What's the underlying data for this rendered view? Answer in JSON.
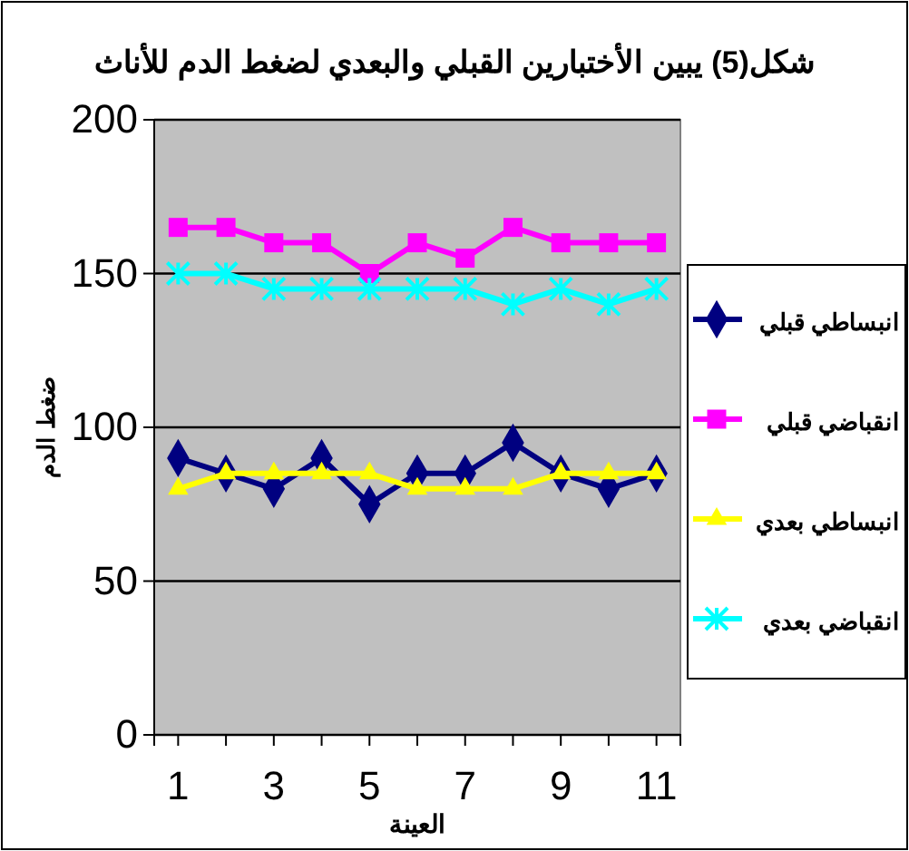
{
  "chart_data": {
    "type": "line",
    "title": "شكل(5)   يبين الأختبارين القبلي والبعدي لضغط الدم للأناث",
    "xlabel": "العينة",
    "ylabel": "ضغط الدم",
    "categories": [
      "1",
      null,
      "3",
      null,
      "5",
      null,
      "7",
      null,
      "9",
      null,
      "11"
    ],
    "series": [
      {
        "name": "انبساطي قبلي",
        "color": "#000080",
        "marker": "diamond",
        "values": [
          90,
          85,
          80,
          90,
          75,
          85,
          85,
          95,
          85,
          80,
          85
        ]
      },
      {
        "name": "انقباضي قبلي",
        "color": "#ff00ff",
        "marker": "square",
        "values": [
          165,
          165,
          160,
          160,
          150,
          160,
          155,
          165,
          160,
          160,
          160
        ]
      },
      {
        "name": "انبساطي بعدي",
        "color": "#ffff00",
        "marker": "triangle",
        "values": [
          80,
          85,
          85,
          85,
          85,
          80,
          80,
          80,
          85,
          85,
          85
        ]
      },
      {
        "name": "انقباضي بعدي",
        "color": "#00ffff",
        "marker": "cross",
        "values": [
          150,
          150,
          145,
          145,
          145,
          145,
          145,
          140,
          145,
          140,
          145
        ]
      }
    ],
    "ylim": [
      0,
      200
    ],
    "yticks": [
      0,
      50,
      100,
      150,
      200
    ],
    "grid": "y",
    "legend": "right"
  }
}
